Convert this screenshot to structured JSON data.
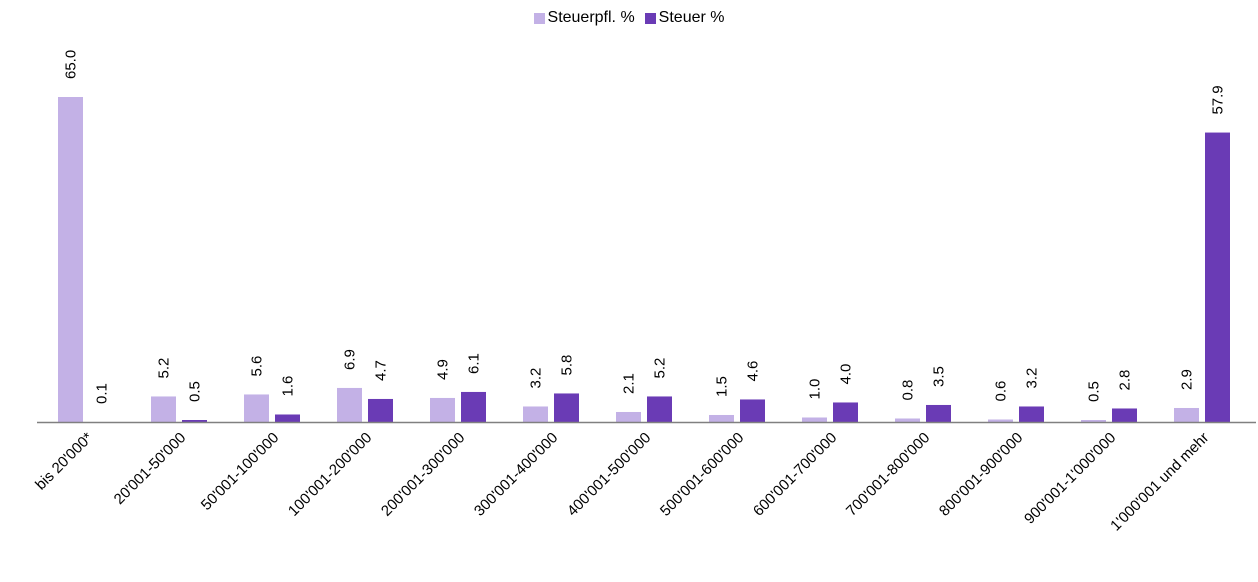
{
  "chart_data": {
    "type": "bar",
    "categories": [
      "bis 20'000*",
      "20'001-50'000",
      "50'001-100'000",
      "100'001-200'000",
      "200'001-300'000",
      "300'001-400'000",
      "400'001-500'000",
      "500'001-600'000",
      "600'001-700'000",
      "700'001-800'000",
      "800'001-900'000",
      "900'001-1'000'000",
      "1'000'001 und mehr"
    ],
    "series": [
      {
        "name": "Steuerpfl. %",
        "color": "#c3b1e6",
        "values": [
          65.0,
          5.2,
          5.6,
          6.9,
          4.9,
          3.2,
          2.1,
          1.5,
          1.0,
          0.8,
          0.6,
          0.5,
          2.9
        ]
      },
      {
        "name": "Steuer %",
        "color": "#6a3bb5",
        "values": [
          0.1,
          0.5,
          1.6,
          4.7,
          6.1,
          5.8,
          5.2,
          4.6,
          4.0,
          3.5,
          3.2,
          2.8,
          57.9
        ]
      }
    ],
    "ylim": [
      0,
      65
    ],
    "grid": false,
    "legend_position": "top",
    "data_labels_rotated": true,
    "axis_color": "#808080"
  }
}
